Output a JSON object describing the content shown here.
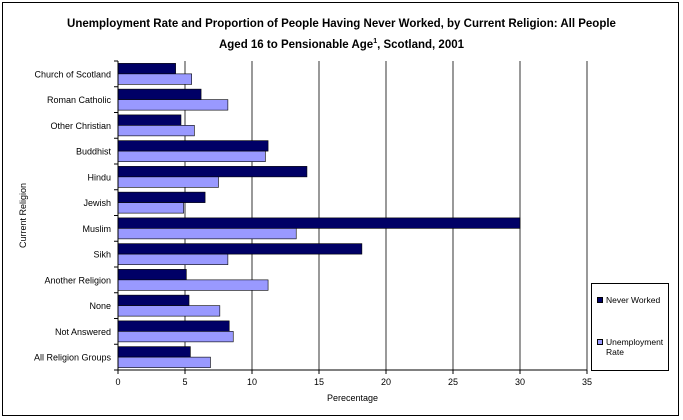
{
  "title_line1": "Unemployment Rate and Proportion of People Having Never Worked, by Current Religion:  All People",
  "title_line2_pre": "Aged 16 to Pensionable Age",
  "title_sup": "1",
  "title_line2_post": ", Scotland, 2001",
  "chart_data": {
    "type": "bar",
    "orientation": "horizontal",
    "title": "Unemployment Rate and Proportion of People Having Never Worked, by Current Religion:  All People Aged 16 to Pensionable Age1, Scotland, 2001",
    "xlabel": "Perecentage",
    "ylabel": "Current Religion",
    "xlim": [
      0,
      35
    ],
    "xticks": [
      0,
      5,
      10,
      15,
      20,
      25,
      30,
      35
    ],
    "grid": "vertical",
    "legend_position": "right",
    "categories": [
      "Church of Scotland",
      "Roman Catholic",
      "Other Christian",
      "Buddhist",
      "Hindu",
      "Jewish",
      "Muslim",
      "Sikh",
      "Another Religion",
      "None",
      "Not Answered",
      "All Religion Groups"
    ],
    "series": [
      {
        "name": "Never Worked",
        "color": "#000066",
        "values": [
          4.3,
          6.2,
          4.7,
          11.2,
          14.1,
          6.5,
          30.0,
          18.2,
          5.1,
          5.3,
          8.3,
          5.4
        ]
      },
      {
        "name": "Unemployment Rate",
        "color": "#9999ff",
        "values": [
          5.5,
          8.2,
          5.7,
          11.0,
          7.5,
          4.9,
          13.3,
          8.2,
          11.2,
          7.6,
          8.6,
          6.9
        ]
      }
    ]
  },
  "legend": {
    "never_worked": "Never Worked",
    "unemployment_rate_line1": "Unemployment",
    "unemployment_rate_line2": "Rate"
  }
}
